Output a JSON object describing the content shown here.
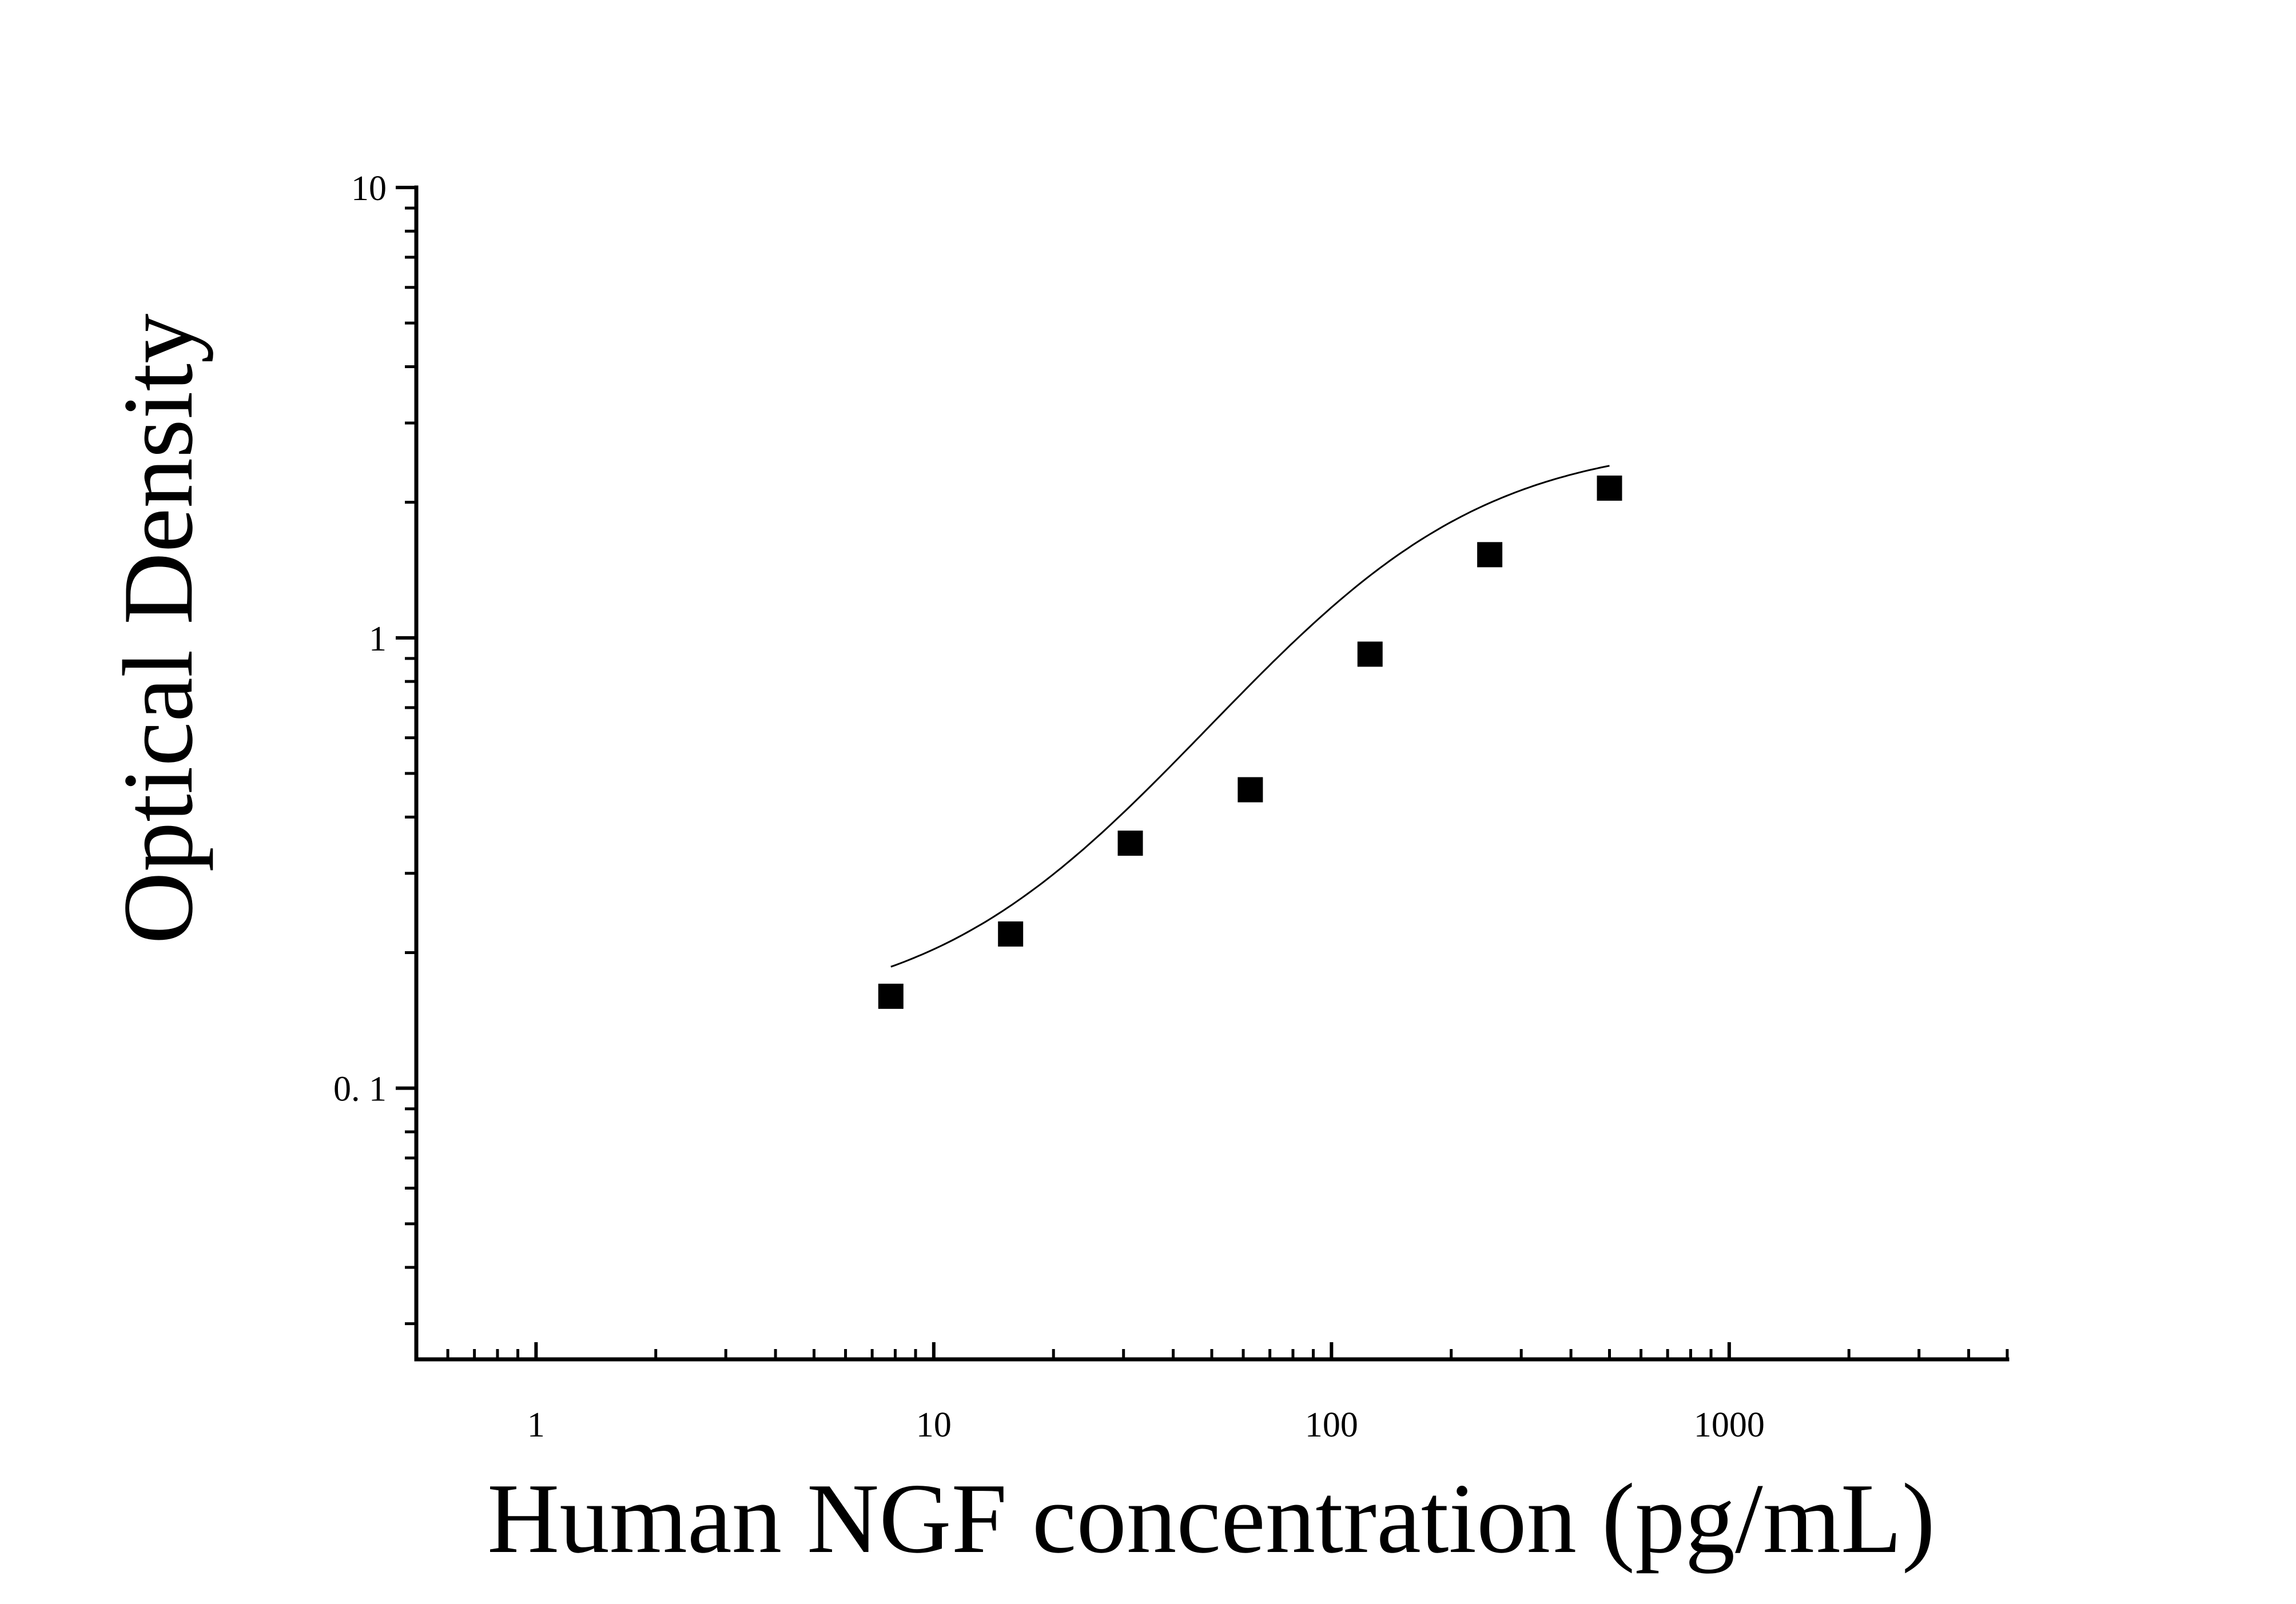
{
  "chart_data": {
    "type": "scatter",
    "title": "",
    "xlabel": "Human NGF concentration (pg/mL)",
    "ylabel": "Optical Density",
    "x_scale": "log",
    "y_scale": "log",
    "xlim": [
      0.5,
      5000
    ],
    "ylim": [
      0.025,
      10
    ],
    "x_ticks": [
      {
        "value": 1,
        "label": "1"
      },
      {
        "value": 10,
        "label": "10"
      },
      {
        "value": 100,
        "label": "100"
      },
      {
        "value": 1000,
        "label": "1000"
      }
    ],
    "y_ticks": [
      {
        "value": 0.1,
        "label": "0. 1"
      },
      {
        "value": 1,
        "label": "1"
      },
      {
        "value": 10,
        "label": "10"
      }
    ],
    "grid": false,
    "legend": "none",
    "series": [
      {
        "marker": "square",
        "color": "#000000",
        "x": [
          7.8,
          15.6,
          31.2,
          62.5,
          125,
          250,
          500
        ],
        "y": [
          0.16,
          0.22,
          0.35,
          0.46,
          0.92,
          1.53,
          2.15
        ]
      }
    ],
    "fit_curve": {
      "type": "4PL",
      "color": "#000000",
      "x_range": [
        7.8,
        500
      ]
    }
  }
}
